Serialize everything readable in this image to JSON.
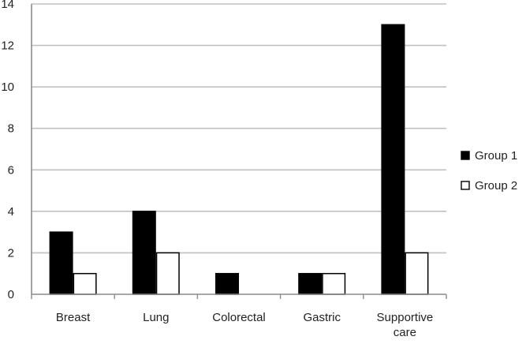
{
  "chart_data": {
    "type": "bar",
    "categories": [
      "Breast",
      "Lung",
      "Colorectal",
      "Gastric",
      "Supportive care"
    ],
    "category_lines": [
      [
        "Breast"
      ],
      [
        "Lung"
      ],
      [
        "Colorectal"
      ],
      [
        "Gastric"
      ],
      [
        "Supportive",
        "care"
      ]
    ],
    "series": [
      {
        "name": "Group 1",
        "values": [
          3,
          4,
          1,
          1,
          13
        ],
        "fill": "#000000",
        "stroke": "#000000"
      },
      {
        "name": "Group 2",
        "values": [
          1,
          2,
          0,
          1,
          2
        ],
        "fill": "#ffffff",
        "stroke": "#000000"
      }
    ],
    "ylim": [
      0,
      14
    ],
    "yticks": [
      0,
      2,
      4,
      6,
      8,
      10,
      12,
      14
    ],
    "title": "",
    "xlabel": "",
    "ylabel": "",
    "grid": true,
    "legend_position": "right",
    "gridline_color": "#c0c0c0"
  }
}
